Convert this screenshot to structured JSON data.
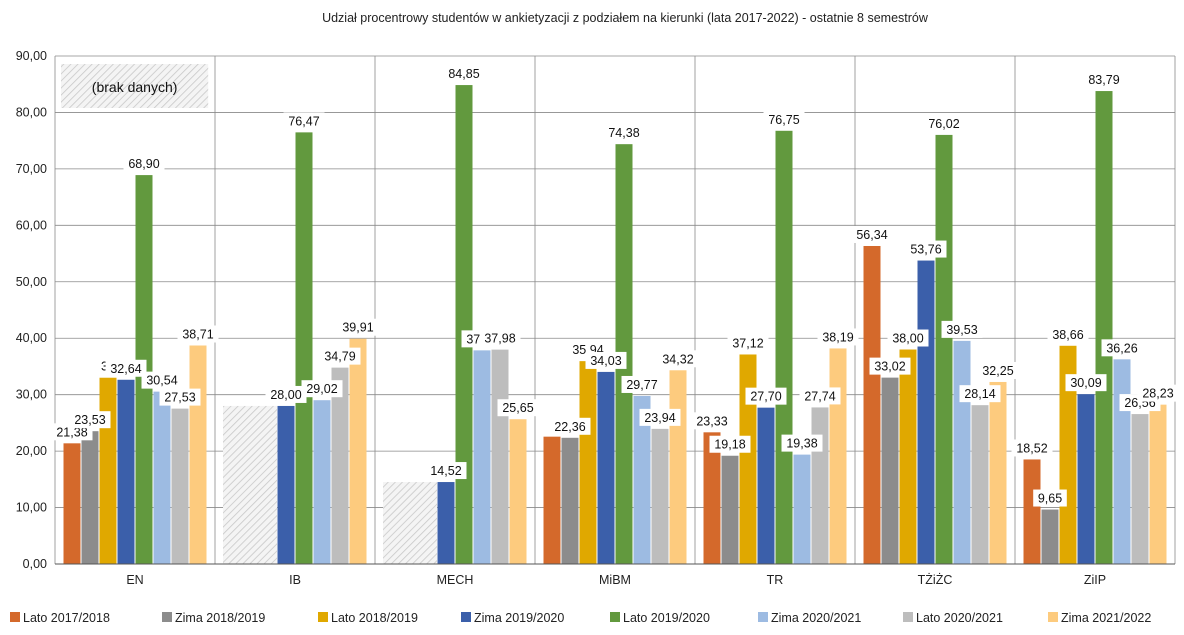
{
  "chart_data": {
    "type": "bar",
    "title": "Udział procentrowy studentów w ankietyzacji z podziałem na kierunki (lata 2017-2022) - ostatnie 8 semestrów",
    "xlabel": "",
    "ylabel": "",
    "ylim": [
      0,
      90
    ],
    "yticks": [
      "0,00",
      "10,00",
      "20,00",
      "30,00",
      "40,00",
      "50,00",
      "60,00",
      "70,00",
      "80,00",
      "90,00"
    ],
    "grid": true,
    "legend_position": "bottom",
    "categories": [
      "EN",
      "IB",
      "MECH",
      "MiBM",
      "TR",
      "TŻiŻC",
      "ZiIP"
    ],
    "series": [
      {
        "name": "Lato 2017/2018",
        "color": "#D4692B",
        "values": [
          21.38,
          null,
          null,
          22.56,
          23.33,
          56.34,
          18.52
        ],
        "labels": [
          "21,38",
          "",
          "",
          "",
          "23,33",
          "56,34",
          "18,52"
        ]
      },
      {
        "name": "Zima 2018/2019",
        "color": "#8C8C8C",
        "values": [
          23.53,
          null,
          null,
          22.36,
          19.18,
          33.02,
          9.65
        ],
        "labels": [
          "23,53",
          "",
          "",
          "22,36",
          "19,18",
          "33,02",
          "9,65"
        ]
      },
      {
        "name": "Lato 2018/2019",
        "color": "#E0A800",
        "values": [
          33.0,
          null,
          null,
          35.94,
          37.12,
          38.0,
          38.66
        ],
        "labels": [
          "33",
          "",
          "",
          "35,94",
          "37,12",
          "38,00",
          "38,66"
        ]
      },
      {
        "name": "Zima 2019/2020",
        "color": "#3B5FAA",
        "values": [
          32.64,
          28.0,
          14.52,
          34.03,
          27.7,
          53.76,
          30.09
        ],
        "labels": [
          "32,64",
          "28,00",
          "14,52",
          "34,03",
          "27,70",
          "53,76",
          "30,09"
        ]
      },
      {
        "name": "Lato 2019/2020",
        "color": "#62993E",
        "values": [
          68.9,
          76.47,
          84.85,
          74.38,
          76.75,
          76.02,
          83.79
        ],
        "labels": [
          "68,90",
          "76,47",
          "84,85",
          "74,38",
          "76,75",
          "76,02",
          "83,79"
        ]
      },
      {
        "name": "Zima 2020/2021",
        "color": "#9DBBE2",
        "values": [
          30.54,
          29.02,
          37.85,
          29.77,
          19.38,
          39.53,
          36.26
        ],
        "labels": [
          "30,54",
          "29,02",
          "37,85",
          "29,77",
          "19,38",
          "39,53",
          "36,26"
        ]
      },
      {
        "name": "Lato 2020/2021",
        "color": "#BDBDBD",
        "values": [
          27.53,
          34.79,
          37.98,
          23.94,
          27.74,
          28.14,
          26.56
        ],
        "labels": [
          "27,53",
          "34,79",
          "37,98",
          "23,94",
          "27,74",
          "28,14",
          "26,56"
        ]
      },
      {
        "name": "Zima 2021/2022",
        "color": "#FDCB7E",
        "values": [
          38.71,
          39.91,
          25.65,
          34.32,
          38.19,
          32.25,
          28.23
        ],
        "labels": [
          "38,71",
          "39,91",
          "25,65",
          "34,32",
          "38,19",
          "32,25",
          "28,23"
        ]
      }
    ],
    "missing_data": [
      {
        "category": "EN",
        "series_from": 0,
        "series_to": 7,
        "value": 90,
        "label": "(brak danych)"
      },
      {
        "category": "IB",
        "series_from": 0,
        "series_to": 2,
        "value": 28
      },
      {
        "category": "MECH",
        "series_from": 0,
        "series_to": 2,
        "value": 14.52
      }
    ]
  }
}
